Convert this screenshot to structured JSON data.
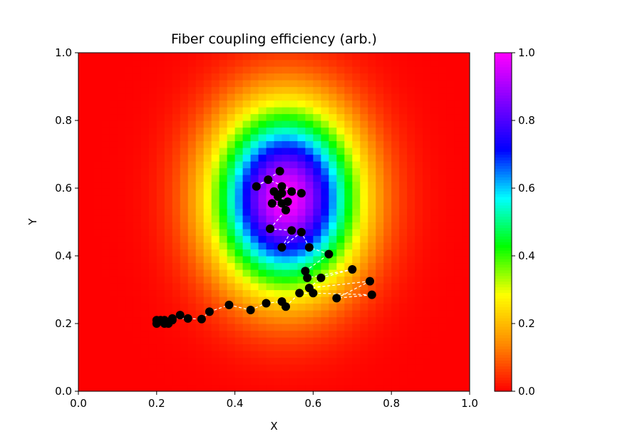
{
  "chart_data": {
    "type": "heatmap",
    "title": "Fiber coupling efficiency (arb.)",
    "xlabel": "X",
    "ylabel": "Y",
    "xlim": [
      0.0,
      1.0
    ],
    "ylim": [
      0.0,
      1.0
    ],
    "x_ticks": [
      "0.0",
      "0.2",
      "0.4",
      "0.6",
      "0.8",
      "1.0"
    ],
    "y_ticks": [
      "0.0",
      "0.2",
      "0.4",
      "0.6",
      "0.8",
      "1.0"
    ],
    "grid": false,
    "colormap": "gist_rainbow_r",
    "colormap_stops": [
      "#ff0000",
      "#ff8c00",
      "#ffff00",
      "#00ff00",
      "#00ffff",
      "#0000ff",
      "#8000ff",
      "#ff00ff"
    ],
    "colorbar": {
      "range": [
        0.0,
        1.0
      ],
      "ticks": [
        "0.0",
        "0.2",
        "0.4",
        "0.6",
        "0.8",
        "1.0"
      ]
    },
    "heatmap": {
      "peak": [
        0.53,
        0.57
      ],
      "peak_value": 1.0,
      "sigma_x": 0.125,
      "sigma_y": 0.18,
      "grid_resolution": 50
    },
    "scan_path": {
      "marker_color": "#000000",
      "line_color": "#ffffff",
      "line_style": "dashed",
      "points": [
        [
          0.2,
          0.2
        ],
        [
          0.21,
          0.21
        ],
        [
          0.22,
          0.2
        ],
        [
          0.2,
          0.21
        ],
        [
          0.23,
          0.2
        ],
        [
          0.24,
          0.21
        ],
        [
          0.22,
          0.21
        ],
        [
          0.26,
          0.225
        ],
        [
          0.24,
          0.215
        ],
        [
          0.28,
          0.215
        ],
        [
          0.315,
          0.213
        ],
        [
          0.335,
          0.235
        ],
        [
          0.385,
          0.255
        ],
        [
          0.44,
          0.24
        ],
        [
          0.48,
          0.26
        ],
        [
          0.52,
          0.265
        ],
        [
          0.53,
          0.25
        ],
        [
          0.565,
          0.29
        ],
        [
          0.6,
          0.29
        ],
        [
          0.75,
          0.285
        ],
        [
          0.66,
          0.275
        ],
        [
          0.745,
          0.325
        ],
        [
          0.59,
          0.305
        ],
        [
          0.62,
          0.335
        ],
        [
          0.7,
          0.36
        ],
        [
          0.585,
          0.335
        ],
        [
          0.58,
          0.355
        ],
        [
          0.64,
          0.405
        ],
        [
          0.59,
          0.425
        ],
        [
          0.57,
          0.47
        ],
        [
          0.52,
          0.425
        ],
        [
          0.545,
          0.475
        ],
        [
          0.49,
          0.48
        ],
        [
          0.53,
          0.535
        ],
        [
          0.495,
          0.555
        ],
        [
          0.52,
          0.555
        ],
        [
          0.535,
          0.56
        ],
        [
          0.51,
          0.575
        ],
        [
          0.52,
          0.585
        ],
        [
          0.5,
          0.59
        ],
        [
          0.52,
          0.605
        ],
        [
          0.545,
          0.59
        ],
        [
          0.57,
          0.585
        ],
        [
          0.485,
          0.625
        ],
        [
          0.455,
          0.605
        ],
        [
          0.515,
          0.65
        ]
      ]
    }
  }
}
